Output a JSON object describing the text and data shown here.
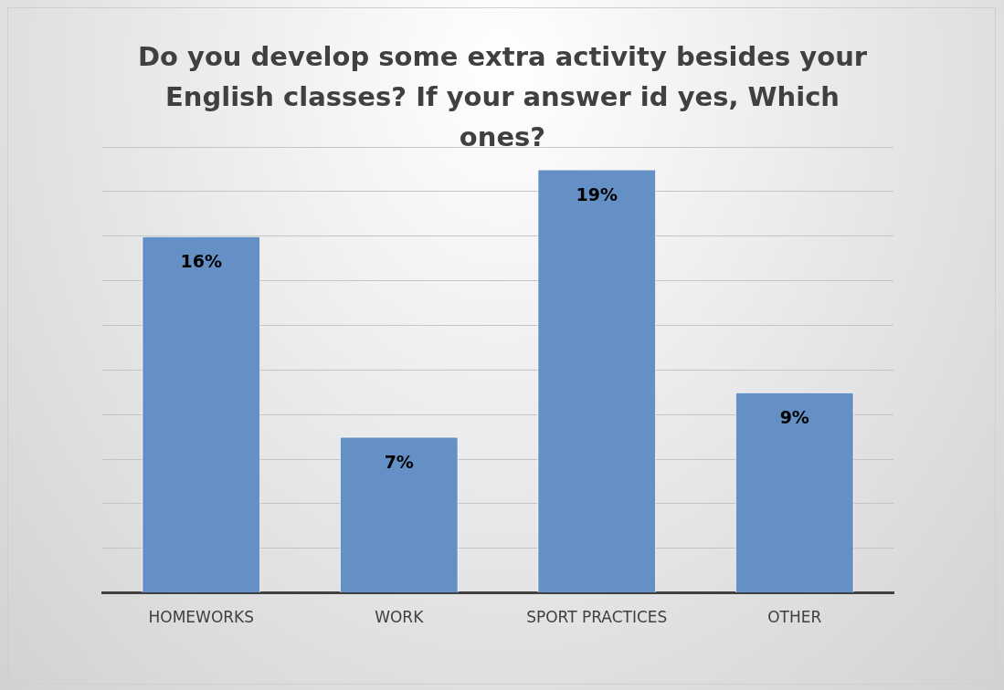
{
  "chart_data": {
    "type": "bar",
    "title": "Do you develop some extra activity besides your English classes? If your answer id yes, Which ones?",
    "categories": [
      "HOMEWORKS",
      "WORK",
      "SPORT PRACTICES",
      "OTHER"
    ],
    "values": [
      16,
      7,
      19,
      9
    ],
    "value_labels": [
      "16%",
      "7%",
      "19%",
      "9%"
    ],
    "color": "#6590c6",
    "ylim": [
      0,
      20
    ],
    "yticks": [
      0,
      2,
      4,
      6,
      8,
      10,
      12,
      14,
      16,
      18,
      20
    ],
    "grid": "y",
    "tick_labels": "x",
    "legend": false
  }
}
